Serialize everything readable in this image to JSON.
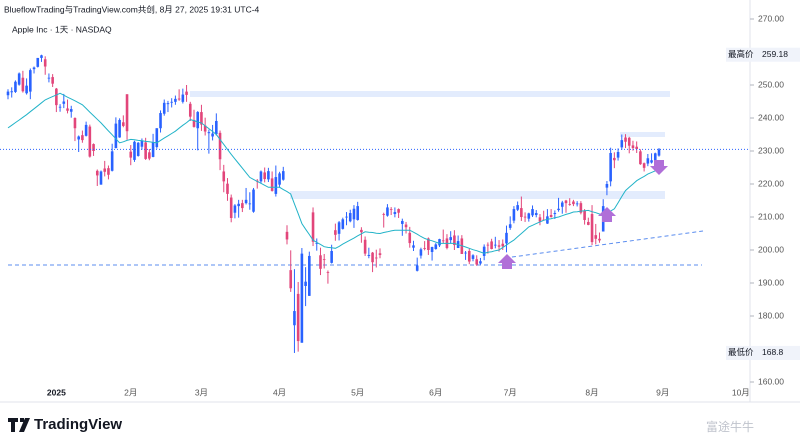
{
  "header": {
    "attribution": "BlueflowTrading与TradingView.com共创, 8月 27, 2025 19:31 UTC-4",
    "symbol": "Apple Inc · 1天 · NASDAQ"
  },
  "footer": {
    "logo": "TradingView",
    "watermark": "富途牛牛"
  },
  "chart_data": {
    "type": "candlestick",
    "up_color": "#2962ff",
    "down_color": "#e2457a",
    "ma_color": "#22b3c8",
    "ylim": [
      160,
      270
    ],
    "yticks": [
      {
        "value": 270,
        "label": "270.00"
      },
      {
        "value": 250,
        "label": "250.00"
      },
      {
        "value": 240,
        "label": "240.00"
      },
      {
        "value": 230,
        "label": "230.00"
      },
      {
        "value": 220,
        "label": "220.00"
      },
      {
        "value": 210,
        "label": "210.00"
      },
      {
        "value": 200,
        "label": "200.00"
      },
      {
        "value": 190,
        "label": "190.00"
      },
      {
        "value": 180,
        "label": "180.00"
      },
      {
        "value": 160,
        "label": "160.00"
      }
    ],
    "x_labels": [
      "2025",
      "2月",
      "3月",
      "4月",
      "5月",
      "6月",
      "7月",
      "8月",
      "9月",
      "10月"
    ],
    "high_label": {
      "text": "最高价",
      "value": 259.18
    },
    "low_label": {
      "text": "最低价",
      "value": 168.8
    },
    "ohlc": [
      [
        246.9,
        248.7,
        245.7,
        248.0
      ],
      [
        247.8,
        249.3,
        246.2,
        248.1
      ],
      [
        247.9,
        251.4,
        247.6,
        251.0
      ],
      [
        250.1,
        253.8,
        249.8,
        253.5
      ],
      [
        252.2,
        254.3,
        247.7,
        248.1
      ],
      [
        247.5,
        252.0,
        247.1,
        249.8
      ],
      [
        248.0,
        255.0,
        245.7,
        254.5
      ],
      [
        254.8,
        255.6,
        253.5,
        255.3
      ],
      [
        255.5,
        258.2,
        255.3,
        258.2
      ],
      [
        258.2,
        259.18,
        257.0,
        259.0
      ],
      [
        257.8,
        258.7,
        253.1,
        255.6
      ],
      [
        252.2,
        253.5,
        250.8,
        252.2
      ],
      [
        252.4,
        253.3,
        249.4,
        250.4
      ],
      [
        248.9,
        249.1,
        241.8,
        243.9
      ],
      [
        243.4,
        244.2,
        241.9,
        243.4
      ],
      [
        244.3,
        247.3,
        243.0,
        245.0
      ],
      [
        242.9,
        245.6,
        241.4,
        242.2
      ],
      [
        241.9,
        243.7,
        240.1,
        242.7
      ],
      [
        240.0,
        240.2,
        233.0,
        236.9
      ],
      [
        233.5,
        234.7,
        229.7,
        234.4
      ],
      [
        234.8,
        236.2,
        232.5,
        233.3
      ],
      [
        234.6,
        238.9,
        234.4,
        237.9
      ],
      [
        237.4,
        238.0,
        228.0,
        228.3
      ],
      [
        232.1,
        232.3,
        228.5,
        230.0
      ],
      [
        224.0,
        224.4,
        219.4,
        222.6
      ],
      [
        219.8,
        224.1,
        219.8,
        223.8
      ],
      [
        224.7,
        227.0,
        222.3,
        223.7
      ],
      [
        224.8,
        225.6,
        221.4,
        222.8
      ],
      [
        224.0,
        232.2,
        223.8,
        229.9
      ],
      [
        230.9,
        240.2,
        230.8,
        238.3
      ],
      [
        234.1,
        239.9,
        234.0,
        239.4
      ],
      [
        238.7,
        240.8,
        237.2,
        237.6
      ],
      [
        247.2,
        247.2,
        233.4,
        236.0
      ],
      [
        229.8,
        231.8,
        225.7,
        228.0
      ],
      [
        227.3,
        233.1,
        226.7,
        232.8
      ],
      [
        228.5,
        232.7,
        228.3,
        232.5
      ],
      [
        231.3,
        233.8,
        230.4,
        233.2
      ],
      [
        232.6,
        234.0,
        227.3,
        227.6
      ],
      [
        229.6,
        230.6,
        227.2,
        227.7
      ],
      [
        228.2,
        235.2,
        228.1,
        232.6
      ],
      [
        231.2,
        236.9,
        230.7,
        236.9
      ],
      [
        236.9,
        242.3,
        235.6,
        241.5
      ],
      [
        241.3,
        245.6,
        240.7,
        244.6
      ],
      [
        244.2,
        245.2,
        241.8,
        244.5
      ],
      [
        244.7,
        246.0,
        243.2,
        244.9
      ],
      [
        244.9,
        246.8,
        244.0,
        245.8
      ],
      [
        245.9,
        248.7,
        245.2,
        245.6
      ],
      [
        244.9,
        248.9,
        244.4,
        247.1
      ],
      [
        248.0,
        250.0,
        244.9,
        247.0
      ],
      [
        244.3,
        244.9,
        239.1,
        240.4
      ],
      [
        239.4,
        242.5,
        237.1,
        237.3
      ],
      [
        236.9,
        242.1,
        230.2,
        241.8
      ],
      [
        241.8,
        244.0,
        236.1,
        238.0
      ],
      [
        237.7,
        240.1,
        234.7,
        235.9
      ],
      [
        235.4,
        236.5,
        229.2,
        235.7
      ],
      [
        234.4,
        237.9,
        233.2,
        235.3
      ],
      [
        235.1,
        241.4,
        234.7,
        239.1
      ],
      [
        235.5,
        236.2,
        224.2,
        227.5
      ],
      [
        223.8,
        225.8,
        217.5,
        220.8
      ],
      [
        220.1,
        221.8,
        214.9,
        217.0
      ],
      [
        215.9,
        216.8,
        208.4,
        209.7
      ],
      [
        211.3,
        213.9,
        209.6,
        213.5
      ],
      [
        213.3,
        215.2,
        209.8,
        214.0
      ],
      [
        214.2,
        215.2,
        211.5,
        212.7
      ],
      [
        214.2,
        218.8,
        213.8,
        215.2
      ],
      [
        213.9,
        217.5,
        212.2,
        214.1
      ],
      [
        211.6,
        218.8,
        211.3,
        218.3
      ],
      [
        221.0,
        221.5,
        218.6,
        220.7
      ],
      [
        220.8,
        224.1,
        220.1,
        223.8
      ],
      [
        223.5,
        225.0,
        220.5,
        221.5
      ],
      [
        221.4,
        224.9,
        220.6,
        223.9
      ],
      [
        221.7,
        223.8,
        217.7,
        217.9
      ],
      [
        217.0,
        225.6,
        216.2,
        222.1
      ],
      [
        219.8,
        223.7,
        218.9,
        223.2
      ],
      [
        221.3,
        225.2,
        221.0,
        223.9
      ],
      [
        205.5,
        207.5,
        201.7,
        203.2
      ],
      [
        193.9,
        199.9,
        187.3,
        188.4
      ],
      [
        177.2,
        194.2,
        168.8,
        181.5
      ],
      [
        186.7,
        190.3,
        169.2,
        172.4
      ],
      [
        171.9,
        200.6,
        171.9,
        198.9
      ],
      [
        189.1,
        194.8,
        183.0,
        190.4
      ],
      [
        186.1,
        199.5,
        186.1,
        198.2
      ],
      [
        211.4,
        212.9,
        201.2,
        202.5
      ],
      [
        201.9,
        203.5,
        199.8,
        202.1
      ],
      [
        198.4,
        200.7,
        192.4,
        194.3
      ],
      [
        197.2,
        198.8,
        194.4,
        197.0
      ],
      [
        193.3,
        193.8,
        189.8,
        193.2
      ],
      [
        196.1,
        201.6,
        195.9,
        199.7
      ],
      [
        206.0,
        208.0,
        202.8,
        204.6
      ],
      [
        204.9,
        208.8,
        202.9,
        208.4
      ],
      [
        206.4,
        209.8,
        206.2,
        209.3
      ],
      [
        210.0,
        211.5,
        207.5,
        210.1
      ],
      [
        208.7,
        212.2,
        208.4,
        211.2
      ],
      [
        209.3,
        213.6,
        206.7,
        212.5
      ],
      [
        209.1,
        214.6,
        208.9,
        213.3
      ],
      [
        206.1,
        206.9,
        202.2,
        205.4
      ],
      [
        203.1,
        204.1,
        198.2,
        198.9
      ],
      [
        198.2,
        200.7,
        197.5,
        198.5
      ],
      [
        199.2,
        199.4,
        193.3,
        196.3
      ],
      [
        197.7,
        200.1,
        194.7,
        197.5
      ],
      [
        199.0,
        200.5,
        197.5,
        198.5
      ],
      [
        210.9,
        211.3,
        206.8,
        210.8
      ],
      [
        210.4,
        213.9,
        210.1,
        212.9
      ],
      [
        212.4,
        213.0,
        210.6,
        212.3
      ],
      [
        210.9,
        212.9,
        209.9,
        211.5
      ],
      [
        212.4,
        212.6,
        209.7,
        211.3
      ],
      [
        207.9,
        209.5,
        204.3,
        208.8
      ],
      [
        207.7,
        208.5,
        205.0,
        206.9
      ],
      [
        205.2,
        207.0,
        200.7,
        202.1
      ],
      [
        200.7,
        202.8,
        199.7,
        201.4
      ],
      [
        193.7,
        197.7,
        193.5,
        195.3
      ],
      [
        198.3,
        200.7,
        197.4,
        200.2
      ],
      [
        200.6,
        202.7,
        199.9,
        200.4
      ],
      [
        203.5,
        203.8,
        198.5,
        200.0
      ],
      [
        199.4,
        201.0,
        196.8,
        200.9
      ],
      [
        200.3,
        202.1,
        200.1,
        201.7
      ],
      [
        201.4,
        203.4,
        200.9,
        203.3
      ],
      [
        202.9,
        206.2,
        202.1,
        202.8
      ],
      [
        203.5,
        204.8,
        200.2,
        200.6
      ],
      [
        203.0,
        205.7,
        202.1,
        203.9
      ],
      [
        204.4,
        206.0,
        200.0,
        201.5
      ],
      [
        200.6,
        204.4,
        200.6,
        202.7
      ],
      [
        203.5,
        204.5,
        198.8,
        198.8
      ],
      [
        199.1,
        199.7,
        197.0,
        199.2
      ],
      [
        199.7,
        200.4,
        195.7,
        196.5
      ],
      [
        197.3,
        198.7,
        196.6,
        198.4
      ],
      [
        197.2,
        198.4,
        195.2,
        195.6
      ],
      [
        195.9,
        197.6,
        195.6,
        196.6
      ],
      [
        198.2,
        201.7,
        196.9,
        201.0
      ],
      [
        201.6,
        202.3,
        198.9,
        201.5
      ],
      [
        202.6,
        203.4,
        200.2,
        200.3
      ],
      [
        201.5,
        204.0,
        200.5,
        201.6
      ],
      [
        201.4,
        203.0,
        199.5,
        201.0
      ],
      [
        201.9,
        203.2,
        200.0,
        201.1
      ],
      [
        202.0,
        207.4,
        199.3,
        205.2
      ],
      [
        206.7,
        210.2,
        206.1,
        207.8
      ],
      [
        208.9,
        213.3,
        208.1,
        212.4
      ],
      [
        212.2,
        214.7,
        211.8,
        213.6
      ],
      [
        212.7,
        216.2,
        208.8,
        210.0
      ],
      [
        210.1,
        211.4,
        208.5,
        210.0
      ],
      [
        209.5,
        211.3,
        208.6,
        211.1
      ],
      [
        210.5,
        213.5,
        210.0,
        212.4
      ],
      [
        210.6,
        212.1,
        209.9,
        211.2
      ],
      [
        209.9,
        210.9,
        207.5,
        208.6
      ],
      [
        209.2,
        211.9,
        208.9,
        209.1
      ],
      [
        208.0,
        212.4,
        207.9,
        210.2
      ],
      [
        210.6,
        212.4,
        209.8,
        210.0
      ],
      [
        210.9,
        212.0,
        209.4,
        211.2
      ],
      [
        212.1,
        215.8,
        211.6,
        212.5
      ],
      [
        213.1,
        214.9,
        211.0,
        214.4
      ],
      [
        215.0,
        215.2,
        211.3,
        214.2
      ],
      [
        213.9,
        215.7,
        213.4,
        213.8
      ],
      [
        214.7,
        215.2,
        213.3,
        213.9
      ],
      [
        214.0,
        214.8,
        213.2,
        214.1
      ],
      [
        214.2,
        214.8,
        210.8,
        211.3
      ],
      [
        211.9,
        212.4,
        207.7,
        209.1
      ],
      [
        208.5,
        209.8,
        207.5,
        207.6
      ],
      [
        210.9,
        213.6,
        201.5,
        202.4
      ],
      [
        204.5,
        207.9,
        201.7,
        203.4
      ],
      [
        203.4,
        205.3,
        202.2,
        202.9
      ],
      [
        205.6,
        215.4,
        205.6,
        213.3
      ],
      [
        218.9,
        220.9,
        216.6,
        220.0
      ],
      [
        220.8,
        231.0,
        219.3,
        229.4
      ],
      [
        227.9,
        229.6,
        224.8,
        227.2
      ],
      [
        228.0,
        230.8,
        227.1,
        229.7
      ],
      [
        231.1,
        235.0,
        230.4,
        233.3
      ],
      [
        234.1,
        235.1,
        230.9,
        232.8
      ],
      [
        234.0,
        234.3,
        229.3,
        231.6
      ],
      [
        231.7,
        233.1,
        230.1,
        230.9
      ],
      [
        231.3,
        232.9,
        229.4,
        230.6
      ],
      [
        229.9,
        230.5,
        225.8,
        226.0
      ],
      [
        226.3,
        226.5,
        223.8,
        224.9
      ],
      [
        226.2,
        229.1,
        225.4,
        227.8
      ],
      [
        226.5,
        229.3,
        226.2,
        227.2
      ],
      [
        226.9,
        229.5,
        224.7,
        229.3
      ],
      [
        228.6,
        230.9,
        228.3,
        230.5
      ]
    ],
    "ma": [
      237,
      237.8,
      238.6,
      239.4,
      240.2,
      241,
      241.9,
      242.8,
      243.7,
      244.6,
      245.5,
      246,
      246.5,
      247,
      247.5,
      246.9,
      246.3,
      245.8,
      245.2,
      244.6,
      244,
      242.9,
      241.8,
      240.7,
      239.6,
      238.5,
      237.3,
      236.1,
      234.9,
      233.7,
      232.5,
      232.8,
      233.2,
      233.5,
      233.4,
      233.2,
      233.1,
      232.9,
      232.8,
      232.6,
      232.5,
      233.2,
      233.9,
      234.6,
      235.3,
      236,
      236.9,
      237.8,
      238.6,
      239.5,
      239.2,
      238.8,
      238.5,
      237.6,
      236.8,
      235.9,
      235,
      233.5,
      232,
      230.5,
      229,
      227.6,
      226.2,
      224.8,
      223.4,
      222,
      221.4,
      220.8,
      220.2,
      219.6,
      219,
      219,
      219,
      219,
      218.3,
      217.7,
      217,
      214,
      211,
      208,
      206.3,
      204.7,
      203,
      202.3,
      201.7,
      201,
      200.8,
      200.7,
      200.5,
      201.1,
      201.8,
      202.4,
      203,
      203.6,
      204.3,
      204.9,
      205.5,
      205.4,
      205.3,
      205.1,
      205,
      205.3,
      205.5,
      205.8,
      206,
      206,
      206,
      206,
      206,
      205.4,
      204.8,
      204.1,
      203.5,
      203.1,
      202.8,
      202.4,
      202,
      202,
      202,
      202,
      202,
      201.6,
      201.3,
      200.9,
      200.5,
      200.1,
      199.8,
      199.4,
      199,
      199.3,
      199.5,
      199.8,
      200,
      200.8,
      201.5,
      202.3,
      203,
      204,
      205,
      206,
      207,
      207.5,
      208,
      208.5,
      209,
      209.3,
      209.5,
      209.8,
      210,
      210.4,
      210.8,
      211.1,
      211.5,
      211.6,
      211.8,
      211.9,
      212,
      211.6,
      211.3,
      210.9,
      210.5,
      211.2,
      211.8,
      212.5,
      214.3,
      216.2,
      218,
      219,
      220,
      221,
      221.7,
      222.3,
      223,
      223.5,
      224,
      224.5
    ]
  }
}
